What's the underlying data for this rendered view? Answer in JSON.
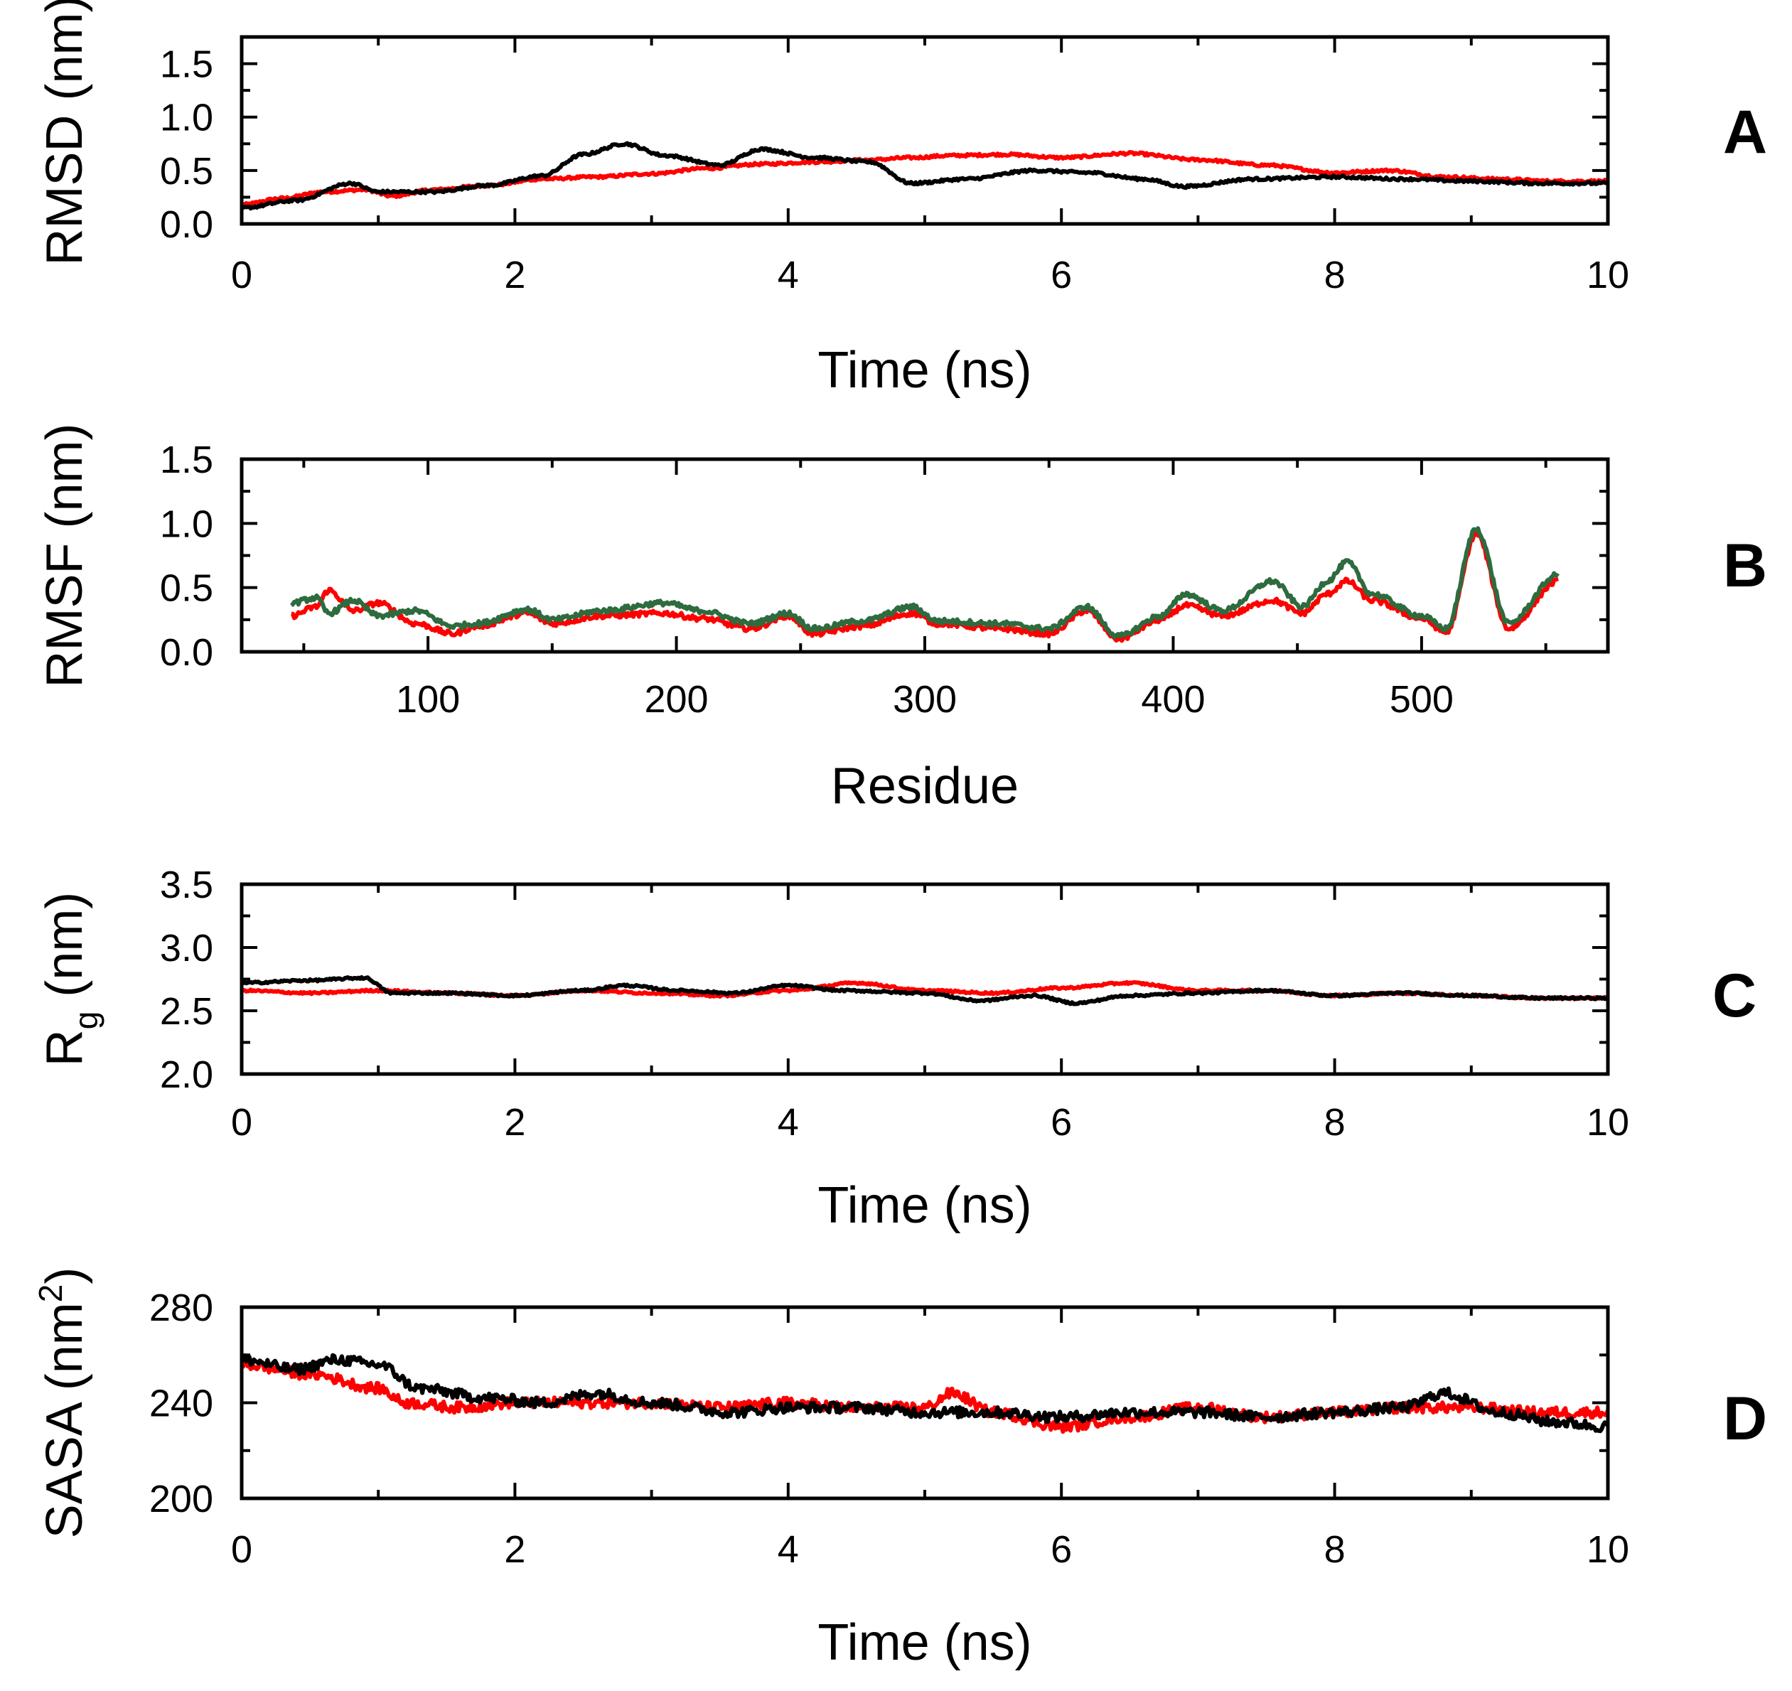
{
  "chart_data": [
    {
      "type": "line",
      "panel_label": "A",
      "xlabel": "Time (ns)",
      "ylabel": "RMSD (nm)",
      "xlim": [
        0,
        10
      ],
      "ylim": [
        0,
        1.75
      ],
      "xticks": [
        0,
        2,
        4,
        6,
        8,
        10
      ],
      "xtick_labels": [
        "0",
        "2",
        "4",
        "6",
        "8",
        "10"
      ],
      "xminor": [
        1,
        3,
        5,
        7,
        9
      ],
      "yticks": [
        0,
        0.5,
        1.0,
        1.5
      ],
      "ytick_labels": [
        "0.0",
        "0.5",
        "1.0",
        "1.5"
      ],
      "yminor": [
        0.25,
        0.75,
        1.25
      ],
      "series": [
        {
          "name": "red",
          "color": "#ff0000",
          "noise": 0.012,
          "x": [
            0,
            0.3,
            0.6,
            0.9,
            1.1,
            1.4,
            1.8,
            2.2,
            2.6,
            3.0,
            3.4,
            3.8,
            4.2,
            4.6,
            4.9,
            5.2,
            5.6,
            6.0,
            6.5,
            7.0,
            7.5,
            8.0,
            8.4,
            8.8,
            9.2,
            9.6,
            10.0
          ],
          "y": [
            0.18,
            0.24,
            0.3,
            0.32,
            0.26,
            0.32,
            0.36,
            0.42,
            0.44,
            0.47,
            0.52,
            0.56,
            0.58,
            0.6,
            0.62,
            0.64,
            0.65,
            0.62,
            0.66,
            0.6,
            0.55,
            0.48,
            0.5,
            0.44,
            0.42,
            0.4,
            0.4
          ]
        },
        {
          "name": "black",
          "color": "#000000",
          "noise": 0.012,
          "x": [
            0,
            0.4,
            0.8,
            1.0,
            1.4,
            1.8,
            2.2,
            2.5,
            2.8,
            3.1,
            3.5,
            3.8,
            4.2,
            4.6,
            4.9,
            5.3,
            5.8,
            6.2,
            6.6,
            6.9,
            7.4,
            8.0,
            8.5,
            9.0,
            9.5,
            10.0
          ],
          "y": [
            0.15,
            0.22,
            0.38,
            0.3,
            0.3,
            0.36,
            0.45,
            0.65,
            0.75,
            0.64,
            0.55,
            0.7,
            0.62,
            0.58,
            0.38,
            0.42,
            0.5,
            0.48,
            0.42,
            0.35,
            0.42,
            0.44,
            0.42,
            0.4,
            0.38,
            0.38
          ]
        }
      ]
    },
    {
      "type": "line",
      "panel_label": "B",
      "xlabel": "Residue",
      "ylabel": "RMSF (nm)",
      "xlim": [
        25,
        575
      ],
      "ylim": [
        0,
        1.5
      ],
      "xticks": [
        100,
        200,
        300,
        400,
        500
      ],
      "xtick_labels": [
        "100",
        "200",
        "300",
        "400",
        "500"
      ],
      "xminor": [
        50,
        150,
        250,
        350,
        450,
        550
      ],
      "yticks": [
        0,
        0.5,
        1.0,
        1.5
      ],
      "ytick_labels": [
        "0.0",
        "0.5",
        "1.0",
        "1.5"
      ],
      "yminor": [
        0.25,
        0.75,
        1.25
      ],
      "series": [
        {
          "name": "red",
          "color": "#ff0000",
          "noise": 0.02,
          "x": [
            45,
            55,
            60,
            70,
            80,
            95,
            110,
            120,
            140,
            150,
            170,
            195,
            210,
            230,
            245,
            255,
            275,
            295,
            305,
            330,
            350,
            365,
            378,
            395,
            405,
            420,
            440,
            452,
            462,
            470,
            480,
            500,
            510,
            522,
            535,
            555
          ],
          "y": [
            0.28,
            0.35,
            0.48,
            0.32,
            0.38,
            0.22,
            0.14,
            0.2,
            0.3,
            0.22,
            0.28,
            0.3,
            0.26,
            0.18,
            0.28,
            0.14,
            0.2,
            0.3,
            0.22,
            0.18,
            0.14,
            0.32,
            0.1,
            0.25,
            0.36,
            0.28,
            0.4,
            0.3,
            0.45,
            0.55,
            0.4,
            0.26,
            0.15,
            0.92,
            0.18,
            0.55
          ]
        },
        {
          "name": "green",
          "color": "#2e6b3e",
          "noise": 0.02,
          "x": [
            45,
            55,
            60,
            70,
            80,
            95,
            110,
            120,
            140,
            150,
            170,
            195,
            210,
            230,
            245,
            255,
            275,
            295,
            305,
            330,
            350,
            365,
            378,
            395,
            405,
            420,
            440,
            452,
            462,
            470,
            480,
            500,
            510,
            522,
            535,
            555
          ],
          "y": [
            0.38,
            0.42,
            0.3,
            0.4,
            0.28,
            0.32,
            0.2,
            0.22,
            0.33,
            0.25,
            0.32,
            0.38,
            0.32,
            0.22,
            0.3,
            0.18,
            0.24,
            0.35,
            0.24,
            0.22,
            0.18,
            0.35,
            0.12,
            0.28,
            0.45,
            0.32,
            0.55,
            0.35,
            0.55,
            0.7,
            0.45,
            0.28,
            0.18,
            0.96,
            0.22,
            0.6
          ]
        }
      ]
    },
    {
      "type": "line",
      "panel_label": "C",
      "xlabel": "Time (ns)",
      "ylabel": "R",
      "ylabel_sub": "g",
      "ylabel_tail": " (nm)",
      "xlim": [
        0,
        10
      ],
      "ylim": [
        2.0,
        3.5
      ],
      "xticks": [
        0,
        2,
        4,
        6,
        8,
        10
      ],
      "xtick_labels": [
        "0",
        "2",
        "4",
        "6",
        "8",
        "10"
      ],
      "xminor": [
        1,
        3,
        5,
        7,
        9
      ],
      "yticks": [
        2.0,
        2.5,
        3.0,
        3.5
      ],
      "ytick_labels": [
        "2.0",
        "2.5",
        "3.0",
        "3.5"
      ],
      "yminor": [
        2.25,
        2.75,
        3.25
      ],
      "series": [
        {
          "name": "red",
          "color": "#ff0000",
          "noise": 0.008,
          "x": [
            0,
            0.5,
            1.0,
            1.5,
            2.0,
            2.5,
            3.0,
            3.5,
            4.0,
            4.5,
            5.0,
            5.5,
            6.0,
            6.5,
            7.0,
            7.5,
            8.0,
            8.5,
            9.0,
            9.5,
            10.0
          ],
          "y": [
            2.66,
            2.64,
            2.66,
            2.64,
            2.62,
            2.66,
            2.64,
            2.62,
            2.66,
            2.72,
            2.66,
            2.64,
            2.68,
            2.72,
            2.66,
            2.66,
            2.62,
            2.64,
            2.62,
            2.6,
            2.6
          ]
        },
        {
          "name": "black",
          "color": "#000000",
          "noise": 0.008,
          "x": [
            0,
            0.5,
            0.9,
            1.1,
            1.5,
            2.0,
            2.5,
            2.8,
            3.2,
            3.6,
            4.0,
            4.4,
            5.0,
            5.4,
            5.8,
            6.1,
            6.5,
            7.0,
            7.5,
            8.0,
            8.5,
            9.0,
            9.5,
            10.0
          ],
          "y": [
            2.72,
            2.74,
            2.76,
            2.64,
            2.64,
            2.62,
            2.66,
            2.7,
            2.66,
            2.64,
            2.7,
            2.66,
            2.64,
            2.58,
            2.62,
            2.56,
            2.62,
            2.64,
            2.66,
            2.62,
            2.64,
            2.62,
            2.6,
            2.6
          ]
        }
      ]
    },
    {
      "type": "line",
      "panel_label": "D",
      "xlabel": "Time (ns)",
      "ylabel": "SASA (nm",
      "ylabel_sup": "2",
      "ylabel_tail": ")",
      "xlim": [
        0,
        10
      ],
      "ylim": [
        200,
        280
      ],
      "xticks": [
        0,
        2,
        4,
        6,
        8,
        10
      ],
      "xtick_labels": [
        "0",
        "2",
        "4",
        "6",
        "8",
        "10"
      ],
      "xminor": [
        1,
        3,
        5,
        7,
        9
      ],
      "yticks": [
        200,
        240,
        280
      ],
      "ytick_labels": [
        "200",
        "240",
        "280"
      ],
      "yminor": [
        220,
        260
      ],
      "series": [
        {
          "name": "red",
          "color": "#ff0000",
          "noise": 2.2,
          "x": [
            0,
            0.5,
            1.0,
            1.2,
            1.6,
            2.0,
            2.5,
            3.0,
            3.5,
            4.0,
            4.5,
            5.0,
            5.2,
            5.5,
            6.0,
            6.5,
            7.0,
            7.5,
            8.0,
            8.5,
            9.0,
            9.5,
            10.0
          ],
          "y": [
            256,
            252,
            246,
            240,
            238,
            240,
            240,
            240,
            238,
            240,
            238,
            238,
            244,
            236,
            230,
            234,
            238,
            234,
            236,
            238,
            238,
            236,
            236
          ]
        },
        {
          "name": "black",
          "color": "#000000",
          "noise": 2.2,
          "x": [
            0,
            0.4,
            0.7,
            1.0,
            1.3,
            1.8,
            2.2,
            2.6,
            3.0,
            3.6,
            4.0,
            4.5,
            5.0,
            5.5,
            6.0,
            6.5,
            7.0,
            7.5,
            8.0,
            8.5,
            8.8,
            9.2,
            9.6,
            10.0
          ],
          "y": [
            258,
            254,
            258,
            256,
            246,
            242,
            240,
            244,
            240,
            236,
            238,
            238,
            236,
            236,
            234,
            236,
            236,
            234,
            236,
            238,
            244,
            236,
            232,
            230
          ]
        }
      ]
    }
  ]
}
